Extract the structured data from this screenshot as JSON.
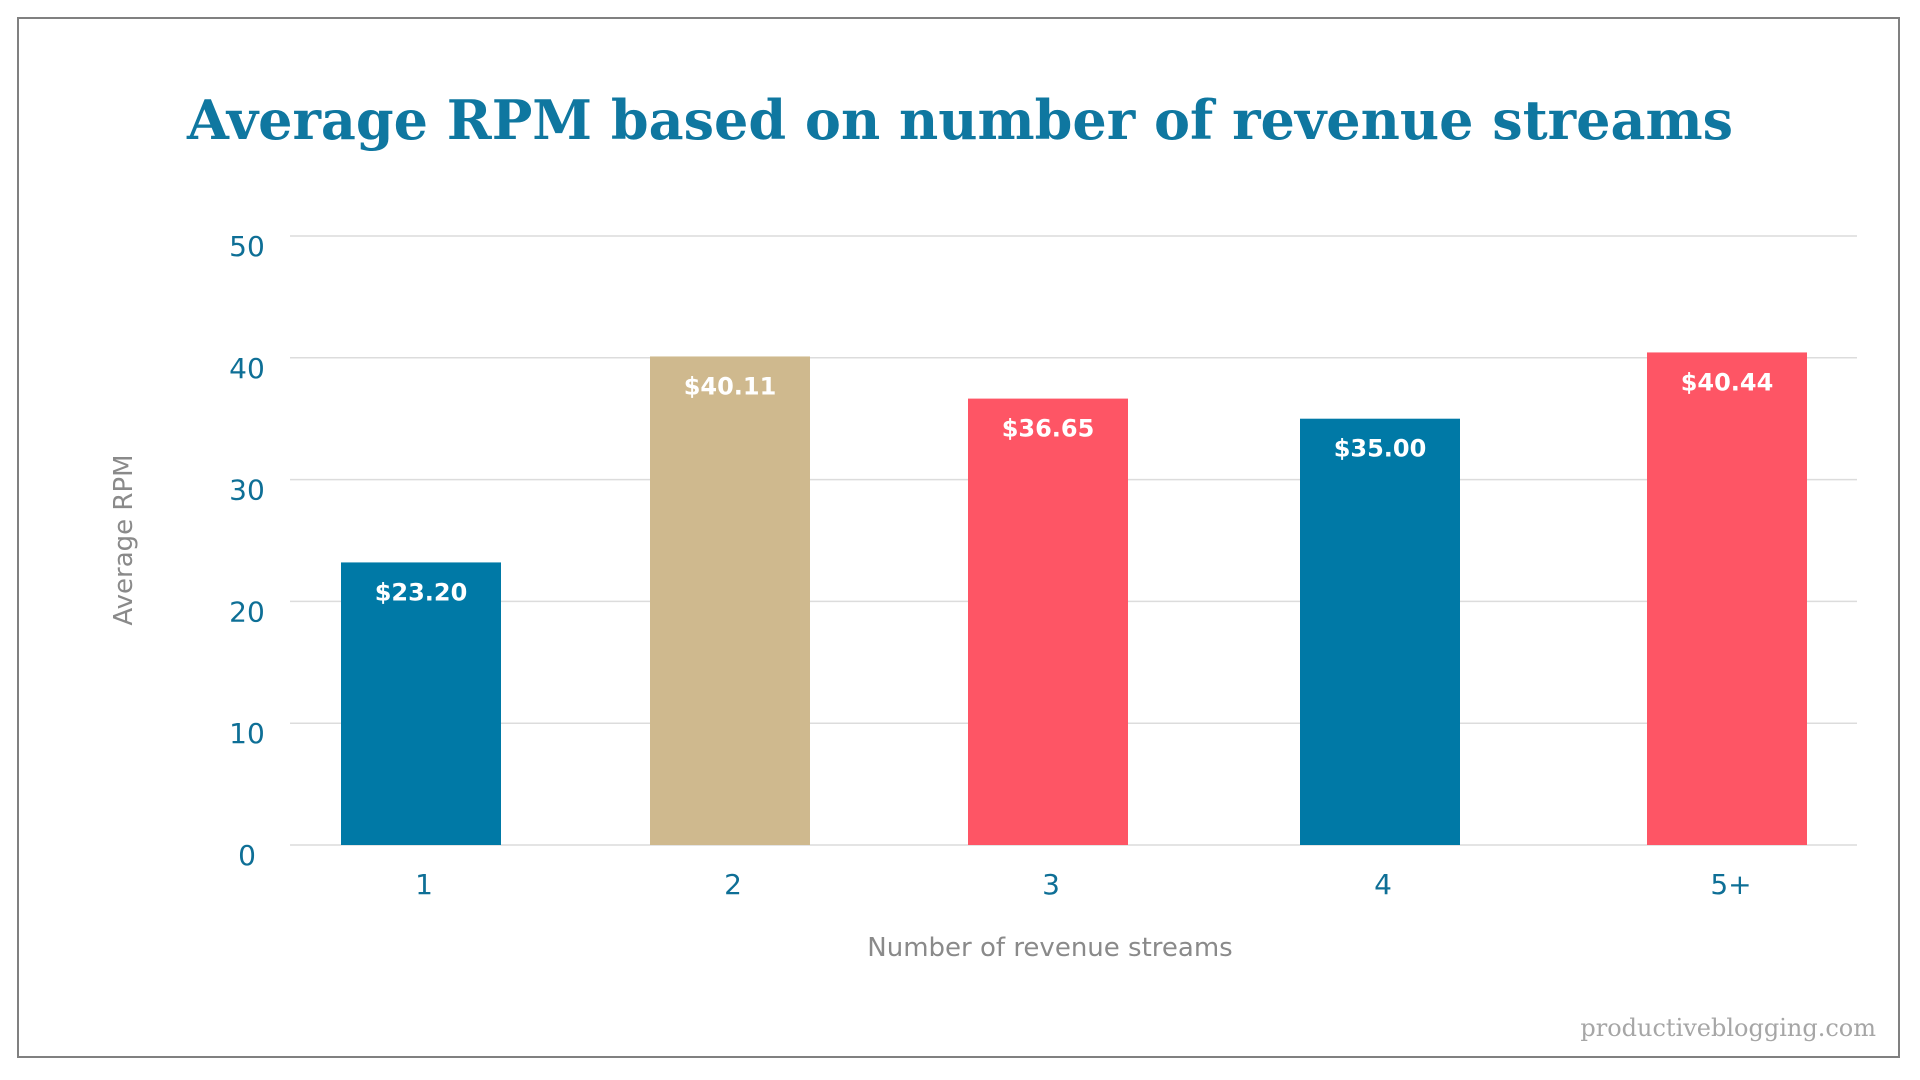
{
  "chart_data": {
    "type": "bar",
    "title": "Average RPM based on number of revenue streams",
    "xlabel": "Number of revenue streams",
    "ylabel": "Average RPM",
    "categories": [
      "1",
      "2",
      "3",
      "4",
      "5+"
    ],
    "values": [
      23.2,
      40.11,
      36.65,
      35.0,
      40.44
    ],
    "data_labels": [
      "$23.20",
      "$40.11",
      "$36.65",
      "$35.00",
      "$40.44"
    ],
    "colors": [
      "#0079a6",
      "#cfb98e",
      "#fe5565",
      "#0079a6",
      "#fe5565"
    ],
    "ylim": [
      0,
      50
    ],
    "yticks": [
      "0",
      "10",
      "20",
      "30",
      "40",
      "50"
    ],
    "grid": true
  },
  "watermark": "productiveblogging.com"
}
